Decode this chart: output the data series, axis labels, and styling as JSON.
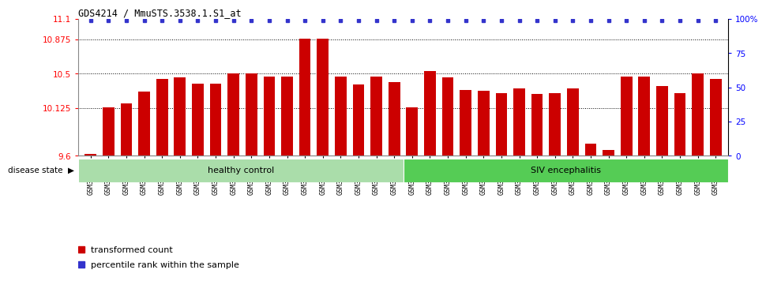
{
  "title": "GDS4214 / MmuSTS.3538.1.S1_at",
  "samples": [
    "GSM347802",
    "GSM347803",
    "GSM347810",
    "GSM347811",
    "GSM347812",
    "GSM347813",
    "GSM347814",
    "GSM347815",
    "GSM347816",
    "GSM347817",
    "GSM347818",
    "GSM347820",
    "GSM347821",
    "GSM347822",
    "GSM347825",
    "GSM347826",
    "GSM347827",
    "GSM347828",
    "GSM347800",
    "GSM347801",
    "GSM347804",
    "GSM347805",
    "GSM347806",
    "GSM347807",
    "GSM347808",
    "GSM347809",
    "GSM347823",
    "GSM347824",
    "GSM347829",
    "GSM347830",
    "GSM347831",
    "GSM347832",
    "GSM347833",
    "GSM347834",
    "GSM347835",
    "GSM347836"
  ],
  "values": [
    9.62,
    10.13,
    10.17,
    10.3,
    10.44,
    10.46,
    10.39,
    10.39,
    10.5,
    10.5,
    10.47,
    10.47,
    10.88,
    10.88,
    10.47,
    10.38,
    10.47,
    10.41,
    10.13,
    10.53,
    10.46,
    10.32,
    10.31,
    10.29,
    10.34,
    10.28,
    10.29,
    10.34,
    9.73,
    9.66,
    10.47,
    10.47,
    10.36,
    10.29,
    10.5,
    10.44
  ],
  "ymin": 9.6,
  "ymax": 11.1,
  "yticks": [
    9.6,
    10.125,
    10.5,
    10.875,
    11.1
  ],
  "ytick_labels": [
    "9.6",
    "10.125",
    "10.5",
    "10.875",
    "11.1"
  ],
  "grid_lines": [
    10.125,
    10.5,
    10.875
  ],
  "bar_color": "#CC0000",
  "percentile_color": "#3333CC",
  "healthy_count": 18,
  "healthy_label": "healthy control",
  "disease_label": "SIV encephalitis",
  "healthy_color": "#AADDAA",
  "disease_color": "#55CC55",
  "legend_bar_label": "transformed count",
  "legend_pct_label": "percentile rank within the sample",
  "right_yticks": [
    0,
    25,
    50,
    75,
    100
  ],
  "right_ytick_labels": [
    "0",
    "25",
    "50",
    "75",
    "100%"
  ]
}
